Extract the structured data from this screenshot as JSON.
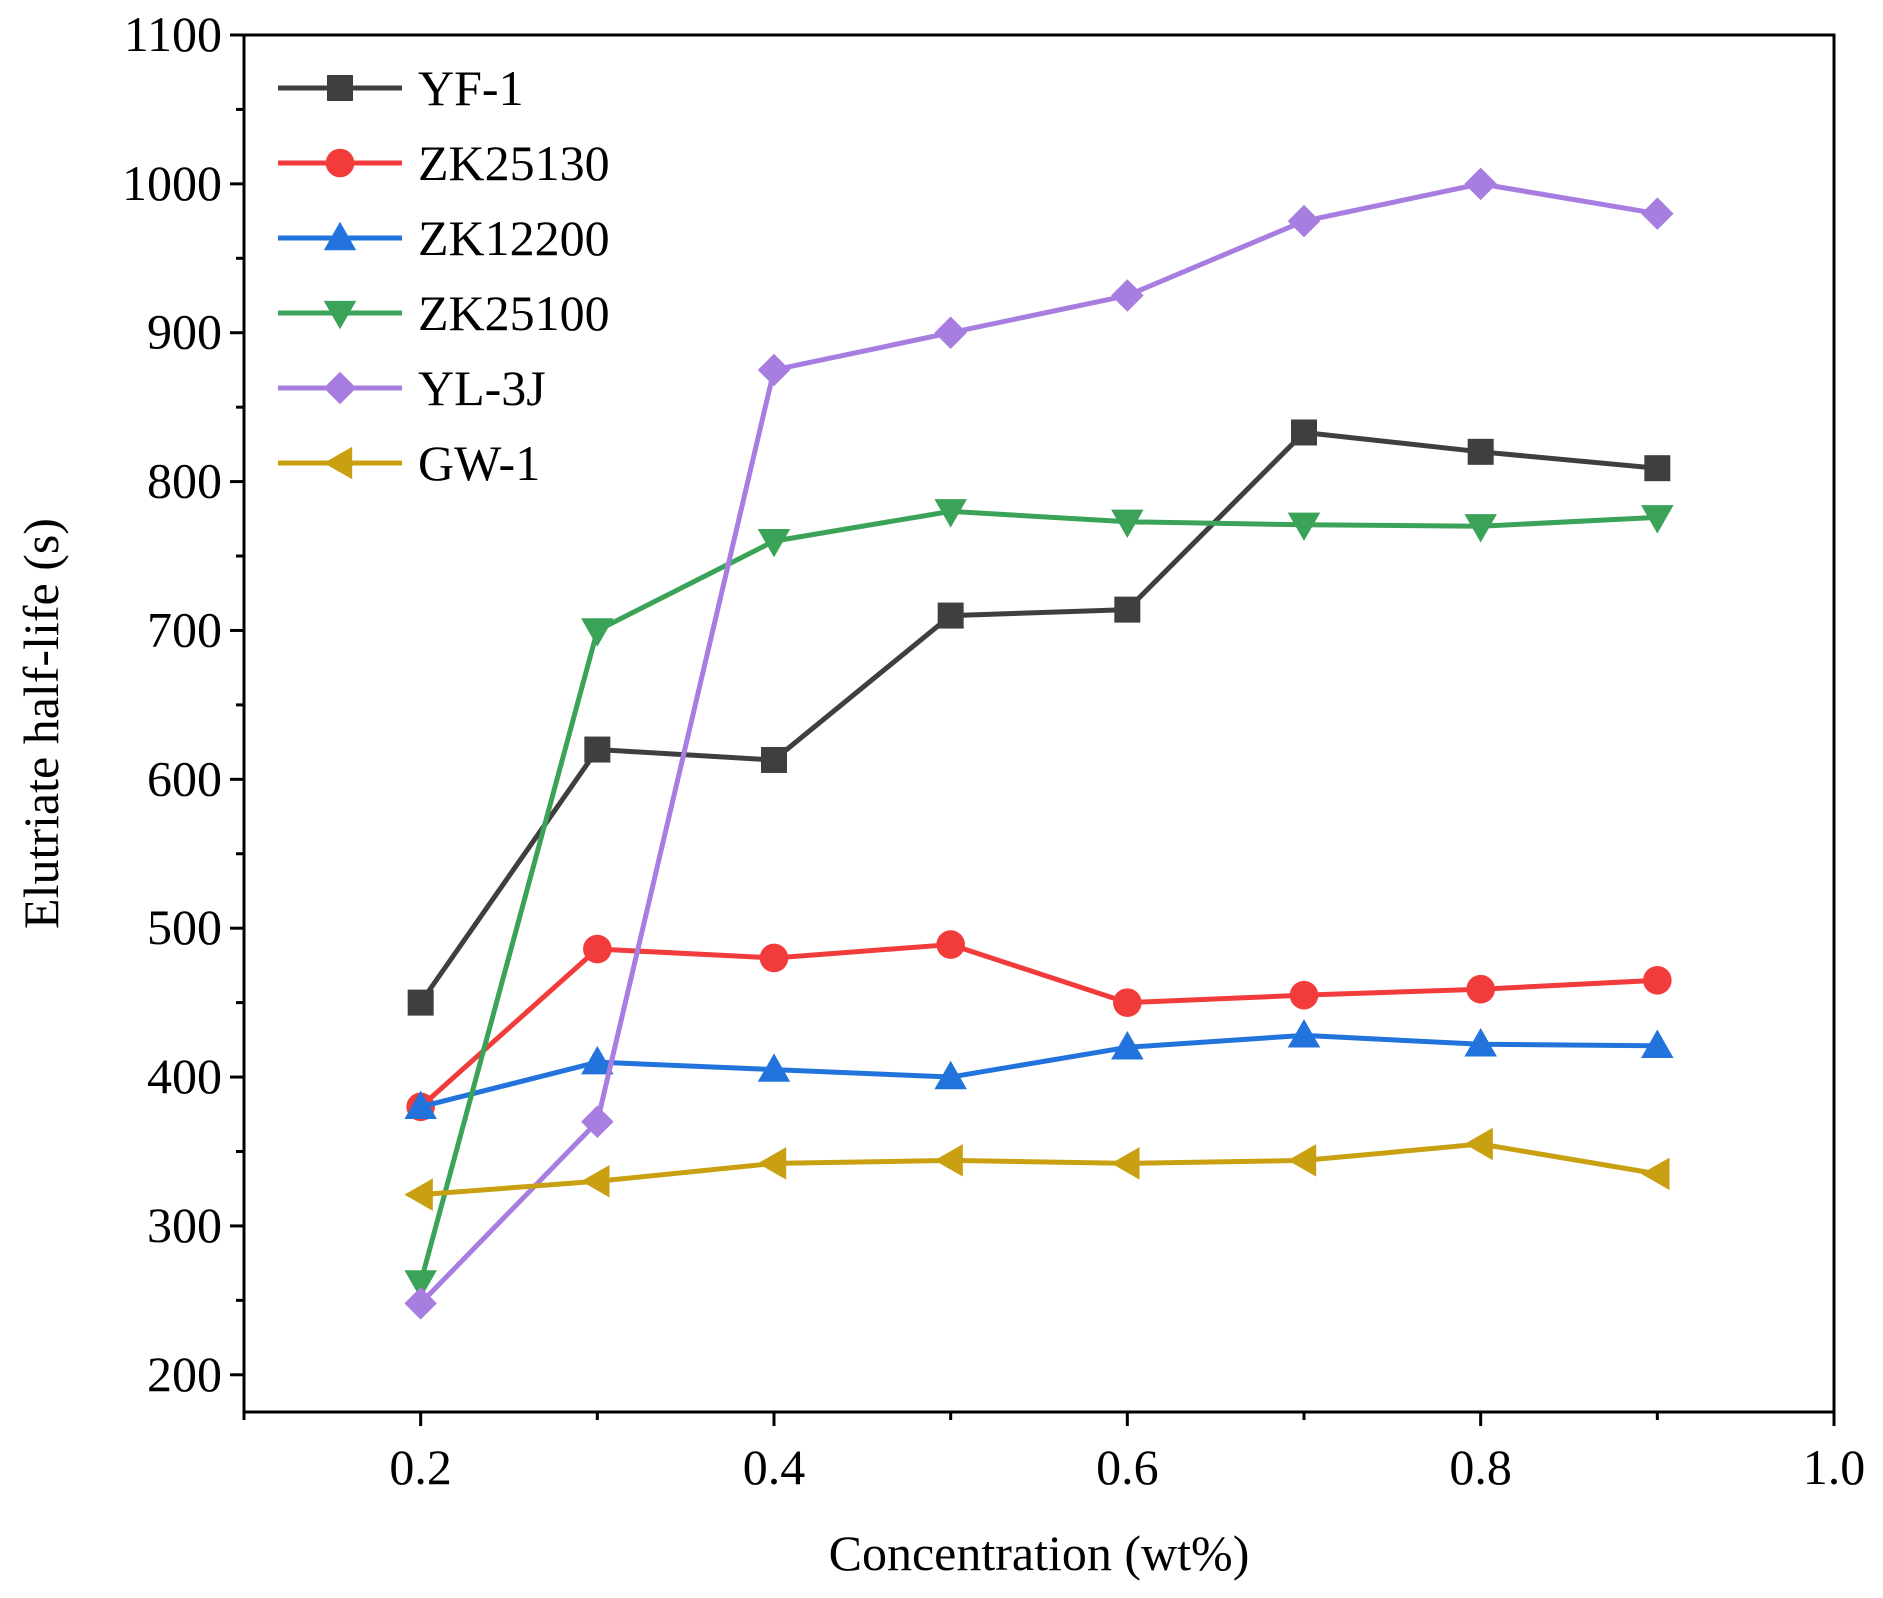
{
  "chart_data": {
    "type": "line",
    "title": "",
    "xlabel": "Concentration (wt%)",
    "ylabel": "Elutriate half-life (s)",
    "xlim": [
      0.1,
      1.0
    ],
    "ylim": [
      175,
      1100
    ],
    "xticks": [
      0.2,
      0.4,
      0.6,
      0.8,
      1.0
    ],
    "xtick_labels": [
      "0.2",
      "0.4",
      "0.6",
      "0.8",
      "1.0"
    ],
    "yticks": [
      200,
      300,
      400,
      500,
      600,
      700,
      800,
      900,
      1000,
      1100
    ],
    "ytick_labels": [
      "200",
      "300",
      "400",
      "500",
      "600",
      "700",
      "800",
      "900",
      "1000",
      "1100"
    ],
    "grid": false,
    "legend_position": "top-left",
    "x": [
      0.2,
      0.3,
      0.4,
      0.5,
      0.6,
      0.7,
      0.8,
      0.9
    ],
    "series": [
      {
        "name": "YF-1",
        "color": "#3f3f3f",
        "marker": "square",
        "values": [
          450,
          620,
          613,
          710,
          714,
          833,
          820,
          809
        ]
      },
      {
        "name": "ZK25130",
        "color": "#f23c3c",
        "marker": "circle",
        "values": [
          380,
          486,
          480,
          489,
          450,
          455,
          459,
          465
        ]
      },
      {
        "name": "ZK12200",
        "color": "#2274dc",
        "marker": "triangle-up",
        "values": [
          380,
          410,
          405,
          400,
          420,
          428,
          422,
          421
        ]
      },
      {
        "name": "ZK25100",
        "color": "#3aa358",
        "marker": "triangle-down",
        "values": [
          262,
          700,
          760,
          780,
          773,
          771,
          770,
          776
        ]
      },
      {
        "name": "YL-3J",
        "color": "#a77de0",
        "marker": "diamond",
        "values": [
          248,
          370,
          875,
          900,
          925,
          975,
          1000,
          980
        ]
      },
      {
        "name": "GW-1",
        "color": "#c8a012",
        "marker": "triangle-left",
        "values": [
          321,
          330,
          342,
          344,
          342,
          344,
          355,
          335
        ]
      }
    ]
  }
}
